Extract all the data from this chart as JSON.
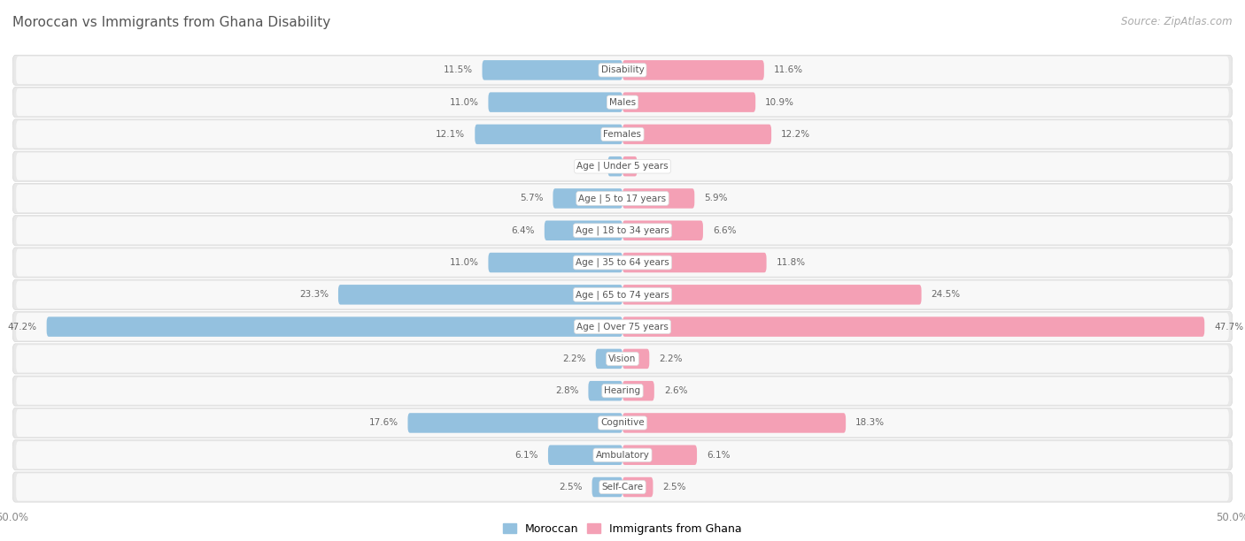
{
  "title": "Moroccan vs Immigrants from Ghana Disability",
  "source": "Source: ZipAtlas.com",
  "categories": [
    "Disability",
    "Males",
    "Females",
    "Age | Under 5 years",
    "Age | 5 to 17 years",
    "Age | 18 to 34 years",
    "Age | 35 to 64 years",
    "Age | 65 to 74 years",
    "Age | Over 75 years",
    "Vision",
    "Hearing",
    "Cognitive",
    "Ambulatory",
    "Self-Care"
  ],
  "moroccan_values": [
    11.5,
    11.0,
    12.1,
    1.2,
    5.7,
    6.4,
    11.0,
    23.3,
    47.2,
    2.2,
    2.8,
    17.6,
    6.1,
    2.5
  ],
  "ghana_values": [
    11.6,
    10.9,
    12.2,
    1.2,
    5.9,
    6.6,
    11.8,
    24.5,
    47.7,
    2.2,
    2.6,
    18.3,
    6.1,
    2.5
  ],
  "moroccan_color": "#94C1DF",
  "ghana_color": "#F4A0B5",
  "axis_max": 50.0,
  "axis_label": "50.0%",
  "page_bg": "#ffffff",
  "row_bg": "#f0f0f0",
  "row_inner_bg": "#fafafa",
  "title_fontsize": 11,
  "source_fontsize": 8.5,
  "label_fontsize": 7.5,
  "value_fontsize": 7.5,
  "legend_labels": [
    "Moroccan",
    "Immigrants from Ghana"
  ]
}
